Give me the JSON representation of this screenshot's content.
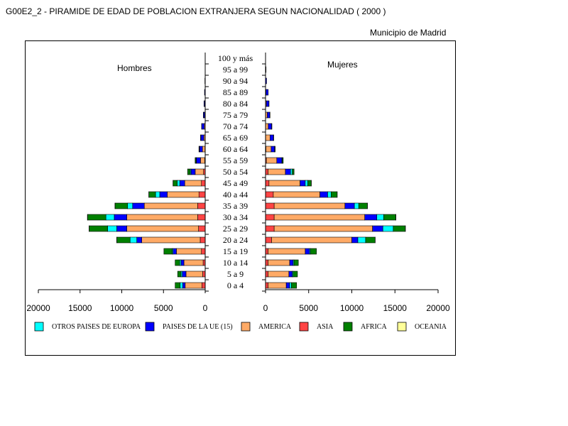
{
  "header": {
    "title": "G00E2_2 - PIRAMIDE DE EDAD DE POBLACION EXTRANJERA SEGUN NACIONALIDAD ( 2000 )",
    "subtitle": "Municipio de Madrid"
  },
  "chart_data": {
    "type": "bar",
    "orientation": "horizontal-pyramid",
    "stacked": true,
    "title": "",
    "left_label": "Hombres",
    "right_label": "Mujeres",
    "categories": [
      "0 a 4",
      "5 a 9",
      "10 a 14",
      "15 a 19",
      "20 a 24",
      "25 a 29",
      "30 a 34",
      "35 a 39",
      "40 a  44",
      "45 a 49",
      "50 a 54",
      "55 a 59",
      "60 a 64",
      "65 a 69",
      "70 a 74",
      "75 a 79",
      "80 a 84",
      "85 a 89",
      "90 a 94",
      "95 a 99",
      "100 y más"
    ],
    "xlim": [
      0,
      20000
    ],
    "xticks": [
      20000,
      15000,
      10000,
      5000,
      0
    ],
    "xticks_right": [
      0,
      5000,
      10000,
      15000,
      20000
    ],
    "legend_position": "bottom",
    "series_order": [
      "ASIA",
      "AMERICA",
      "PAISES DE LA UE (15)",
      "OTROS PAISES DE EUROPA",
      "AFRICA",
      "OCEANIA"
    ],
    "legend": [
      {
        "name": "OTROS PAISES DE EUROPA",
        "color": "#00ffff"
      },
      {
        "name": "PAISES DE LA UE (15)",
        "color": "#0000ff"
      },
      {
        "name": "AMERICA",
        "color": "#ffaa66"
      },
      {
        "name": "ASIA",
        "color": "#ff4444"
      },
      {
        "name": "AFRICA",
        "color": "#008000"
      },
      {
        "name": "OCEANIA",
        "color": "#ffff99"
      }
    ],
    "hombres": {
      "ASIA": [
        400,
        300,
        250,
        450,
        600,
        800,
        900,
        900,
        750,
        450,
        200,
        60,
        30,
        20,
        10,
        5,
        3,
        2,
        0,
        0,
        0
      ],
      "AMERICA": [
        2000,
        2000,
        2300,
        3000,
        7000,
        8600,
        8500,
        6400,
        3800,
        2000,
        1000,
        500,
        300,
        150,
        100,
        60,
        40,
        20,
        10,
        0,
        0
      ],
      "PAISES DE LA UE (15)": [
        300,
        450,
        350,
        400,
        600,
        1200,
        1500,
        1400,
        900,
        600,
        500,
        500,
        350,
        350,
        300,
        150,
        100,
        60,
        30,
        10,
        10
      ],
      "OTROS PAISES DE EUROPA": [
        300,
        150,
        150,
        100,
        800,
        1100,
        1000,
        600,
        500,
        300,
        100,
        50,
        20,
        10,
        5,
        5,
        0,
        0,
        0,
        0,
        0
      ],
      "AFRICA": [
        600,
        400,
        550,
        1000,
        1600,
        2200,
        2200,
        1500,
        800,
        500,
        300,
        100,
        50,
        30,
        10,
        5,
        5,
        0,
        0,
        0,
        0
      ],
      "OCEANIA": [
        0,
        0,
        0,
        0,
        10,
        20,
        20,
        20,
        10,
        10,
        5,
        0,
        0,
        0,
        0,
        0,
        0,
        0,
        0,
        0,
        0
      ]
    },
    "mujeres": {
      "ASIA": [
        300,
        300,
        300,
        300,
        700,
        1000,
        1000,
        1000,
        900,
        400,
        300,
        100,
        50,
        20,
        10,
        5,
        0,
        0,
        0,
        0,
        0
      ],
      "AMERICA": [
        2100,
        2400,
        2500,
        4300,
        9300,
        11400,
        10500,
        8200,
        5400,
        3600,
        2000,
        1200,
        600,
        500,
        300,
        200,
        100,
        60,
        20,
        10,
        0
      ],
      "PAISES DE LA UE (15)": [
        400,
        400,
        400,
        500,
        700,
        1200,
        1400,
        1100,
        900,
        600,
        600,
        600,
        400,
        400,
        400,
        300,
        300,
        250,
        100,
        50,
        10
      ],
      "OTROS PAISES DE EUROPA": [
        200,
        100,
        100,
        100,
        900,
        1200,
        800,
        500,
        400,
        300,
        200,
        50,
        20,
        10,
        10,
        5,
        0,
        0,
        0,
        0,
        0
      ],
      "AFRICA": [
        600,
        500,
        500,
        700,
        1100,
        1400,
        1400,
        1000,
        700,
        400,
        200,
        100,
        50,
        20,
        20,
        10,
        5,
        0,
        0,
        0,
        0
      ],
      "OCEANIA": [
        0,
        0,
        0,
        0,
        10,
        20,
        20,
        20,
        10,
        10,
        5,
        0,
        0,
        0,
        0,
        0,
        0,
        0,
        0,
        0,
        0
      ]
    }
  }
}
